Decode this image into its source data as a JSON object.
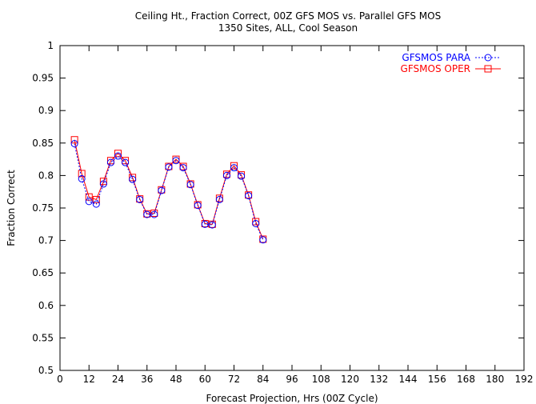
{
  "chart_data": {
    "type": "line",
    "title": "Ceiling Ht., Fraction Correct, 00Z GFS MOS vs. Parallel GFS MOS",
    "subtitle": "1350 Sites, ALL, Cool Season",
    "xlabel": "Forecast Projection, Hrs (00Z Cycle)",
    "ylabel": "Fraction Correct",
    "xlim": [
      0,
      192
    ],
    "ylim": [
      0.5,
      1
    ],
    "xticks": [
      0,
      12,
      24,
      36,
      48,
      60,
      72,
      84,
      96,
      108,
      120,
      132,
      144,
      156,
      168,
      180,
      192
    ],
    "yticks": [
      0.5,
      0.55,
      0.6,
      0.65,
      0.7,
      0.75,
      0.8,
      0.85,
      0.9,
      0.95,
      1
    ],
    "ytick_labels": [
      "0.5",
      "0.55",
      "0.6",
      "0.65",
      "0.7",
      "0.75",
      "0.8",
      "0.85",
      "0.9",
      "0.95",
      "1"
    ],
    "grid": false,
    "legend_position": "top-right",
    "x": [
      6,
      9,
      12,
      15,
      18,
      21,
      24,
      27,
      30,
      33,
      36,
      39,
      42,
      45,
      48,
      51,
      54,
      57,
      60,
      63,
      66,
      69,
      72,
      75,
      78,
      81,
      84
    ],
    "series": [
      {
        "name": "GFSMOS PARA",
        "color": "#0000ff",
        "line": "dotted",
        "marker": "circle",
        "values": [
          0.849,
          0.795,
          0.76,
          0.756,
          0.787,
          0.82,
          0.83,
          0.82,
          0.794,
          0.763,
          0.74,
          0.74,
          0.777,
          0.813,
          0.823,
          0.812,
          0.786,
          0.754,
          0.725,
          0.724,
          0.763,
          0.8,
          0.812,
          0.799,
          0.769,
          0.726,
          0.701
        ]
      },
      {
        "name": "GFSMOS OPER",
        "color": "#ff0000",
        "line": "solid",
        "marker": "square",
        "values": [
          0.855,
          0.803,
          0.767,
          0.763,
          0.791,
          0.823,
          0.834,
          0.823,
          0.797,
          0.764,
          0.741,
          0.742,
          0.778,
          0.814,
          0.825,
          0.814,
          0.787,
          0.755,
          0.726,
          0.725,
          0.765,
          0.802,
          0.815,
          0.801,
          0.77,
          0.729,
          0.702
        ]
      }
    ]
  }
}
